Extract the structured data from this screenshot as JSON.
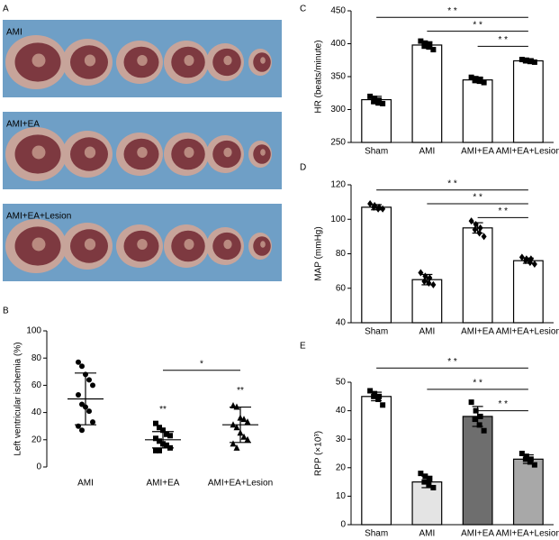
{
  "figure": {
    "photos": {
      "panel": "A",
      "rows": [
        "AMI",
        "AMI+EA",
        "AMI+EA+Lesion"
      ]
    }
  },
  "chart_data": [
    {
      "type": "scatter",
      "panel": "B",
      "y_label": "Left ventricular ischemia (%)",
      "categories": [
        "AMI",
        "AMI+EA",
        "AMI+EA+Lesion"
      ],
      "markers": [
        "circle",
        "square",
        "triangle"
      ],
      "color": "#000000",
      "points": [
        [
          77,
          74,
          68,
          64,
          60,
          53,
          46,
          44,
          41,
          33,
          30,
          27
        ],
        [
          32,
          29,
          27,
          24,
          23,
          21,
          19,
          17,
          16,
          14,
          12,
          12
        ],
        [
          45,
          44,
          36,
          35,
          33,
          31,
          29,
          25,
          22,
          20,
          17,
          14
        ]
      ],
      "values": [
        50,
        20,
        31
      ],
      "errors": [
        19,
        6,
        13
      ],
      "ylim": [
        0,
        100
      ],
      "yticks": [
        0,
        20,
        40,
        60,
        80,
        100
      ],
      "annotations": [
        {
          "category": "AMI+EA",
          "y": 42,
          "text": "**"
        },
        {
          "category": "AMI+EA+Lesion",
          "y": 56,
          "text": "**"
        }
      ],
      "brackets": [
        {
          "from": "AMI+EA",
          "to": "AMI+EA+Lesion",
          "y": 71,
          "label": "*"
        }
      ]
    },
    {
      "type": "bar",
      "panel": "C",
      "y_label": "HR (beats/minute)",
      "categories": [
        "Sham",
        "AMI",
        "AMI+EA",
        "AMI+EA+Lesion"
      ],
      "colors": [
        "#ffffff",
        "#ffffff",
        "#ffffff",
        "#ffffff"
      ],
      "marker": "square",
      "values": [
        315,
        398,
        345,
        374
      ],
      "errors": [
        5,
        5,
        3,
        2
      ],
      "points": [
        [
          320,
          317,
          314,
          312,
          310,
          309
        ],
        [
          404,
          401,
          399,
          398,
          395,
          391
        ],
        [
          349,
          347,
          346,
          344,
          343,
          341
        ],
        [
          376,
          375,
          374,
          374,
          373,
          372
        ]
      ],
      "ylim": [
        250,
        450
      ],
      "yticks": [
        250,
        300,
        350,
        400,
        450
      ],
      "brackets": [
        {
          "from": "Sham",
          "to": "AMI+EA+Lesion",
          "y": 440,
          "label": "* *"
        },
        {
          "from": "AMI",
          "to": "AMI+EA+Lesion",
          "y": 419,
          "label": "* *"
        },
        {
          "from": "AMI+EA",
          "to": "AMI+EA+Lesion",
          "y": 396,
          "label": "* *"
        }
      ]
    },
    {
      "type": "bar",
      "panel": "D",
      "y_label": "MAP (mmHg)",
      "categories": [
        "Sham",
        "AMI",
        "AMI+EA",
        "AMI+EA+Lesion"
      ],
      "colors": [
        "#ffffff",
        "#ffffff",
        "#ffffff",
        "#ffffff"
      ],
      "marker": "diamond",
      "values": [
        107,
        65,
        95,
        76
      ],
      "errors": [
        1.5,
        3,
        3,
        1.5
      ],
      "points": [
        [
          109,
          108,
          107,
          107,
          106,
          106
        ],
        [
          69,
          67,
          66,
          64,
          63,
          62
        ],
        [
          99,
          97,
          95,
          94,
          92,
          90
        ],
        [
          78,
          77,
          77,
          76,
          75,
          74
        ]
      ],
      "ylim": [
        40,
        120
      ],
      "yticks": [
        40,
        60,
        80,
        100,
        120
      ],
      "brackets": [
        {
          "from": "Sham",
          "to": "AMI+EA+Lesion",
          "y": 117,
          "label": "* *"
        },
        {
          "from": "AMI",
          "to": "AMI+EA+Lesion",
          "y": 109,
          "label": "* *"
        },
        {
          "from": "AMI+EA",
          "to": "AMI+EA+Lesion",
          "y": 101,
          "label": "* *"
        }
      ]
    },
    {
      "type": "bar",
      "panel": "E",
      "y_label": "RPP (×10³)",
      "categories": [
        "Sham",
        "AMI",
        "AMI+EA",
        "AMI+EA+Lesion"
      ],
      "colors": [
        "#ffffff",
        "#e4e4e4",
        "#6e6e6e",
        "#a8a8a8"
      ],
      "marker": "square",
      "values": [
        45,
        15,
        38,
        23
      ],
      "errors": [
        1.5,
        2,
        3.5,
        1.5
      ],
      "points": [
        [
          47,
          46,
          45,
          45,
          44,
          42
        ],
        [
          18,
          17,
          16,
          15,
          14,
          13
        ],
        [
          43,
          40,
          38,
          37,
          35,
          33
        ],
        [
          25,
          24,
          23,
          23,
          22,
          21
        ]
      ],
      "ylim": [
        0,
        50
      ],
      "yticks": [
        0,
        10,
        20,
        30,
        40,
        50
      ],
      "brackets": [
        {
          "from": "Sham",
          "to": "AMI+EA+Lesion",
          "y": 55,
          "label": "* *"
        },
        {
          "from": "AMI",
          "to": "AMI+EA+Lesion",
          "y": 47.5,
          "label": "* *"
        },
        {
          "from": "AMI+EA",
          "to": "AMI+EA+Lesion",
          "y": 40,
          "label": "* *"
        }
      ]
    }
  ]
}
